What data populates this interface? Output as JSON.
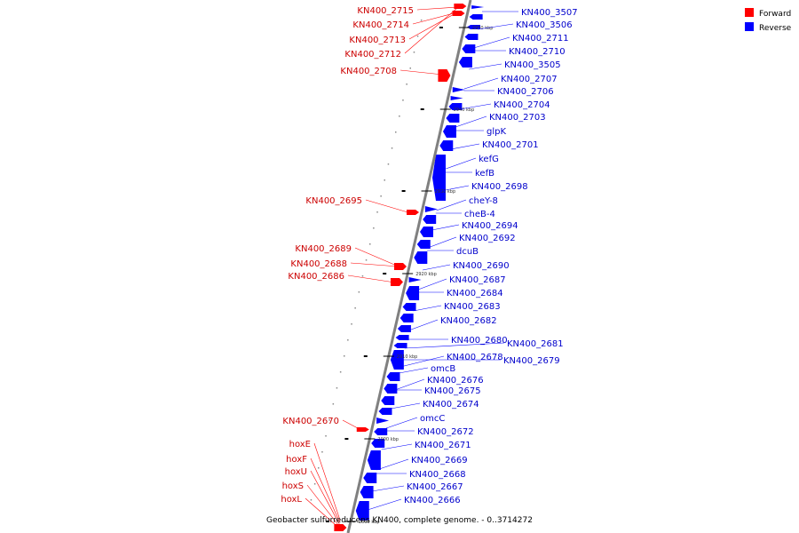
{
  "colors": {
    "forward": "#ff0000",
    "reverse": "#0000ff",
    "forward_text": "#cc0000",
    "reverse_text": "#0000cc",
    "backbone": "#808080"
  },
  "legend": {
    "forward": "Forward",
    "reverse": "Reverse"
  },
  "caption": "Geobacter sulfurreducens KN400, complete genome. - 0..3714272",
  "ticks": [
    "2950 kbp",
    "2940 kbp",
    "2930 kbp",
    "2920 kbp",
    "2910 kbp",
    "2900 kbp",
    "2890 kbp"
  ],
  "forward_genes": [
    "KN400_2715",
    "KN400_2714",
    "KN400_2713",
    "KN400_2712",
    "KN400_2708",
    "KN400_2695",
    "KN400_2689",
    "KN400_2688",
    "KN400_2686",
    "KN400_2670",
    "hoxE",
    "hoxF",
    "hoxU",
    "hoxS",
    "hoxL"
  ],
  "reverse_genes": [
    "KN400_3507",
    "KN400_3506",
    "KN400_2711",
    "KN400_2710",
    "KN400_3505",
    "KN400_2707",
    "KN400_2706",
    "KN400_2704",
    "KN400_2703",
    "glpK",
    "KN400_2701",
    "kefG",
    "kefB",
    "KN400_2698",
    "cheY-8",
    "cheB-4",
    "KN400_2694",
    "KN400_2692",
    "dcuB",
    "KN400_2690",
    "KN400_2687",
    "KN400_2684",
    "KN400_2683",
    "KN400_2682",
    "KN400_2680",
    "KN400_2681",
    "KN400_2678",
    "KN400_2679",
    "omcB",
    "KN400_2676",
    "KN400_2675",
    "KN400_2674",
    "omcC",
    "KN400_2672",
    "KN400_2671",
    "KN400_2669",
    "KN400_2668",
    "KN400_2667",
    "KN400_2666"
  ]
}
